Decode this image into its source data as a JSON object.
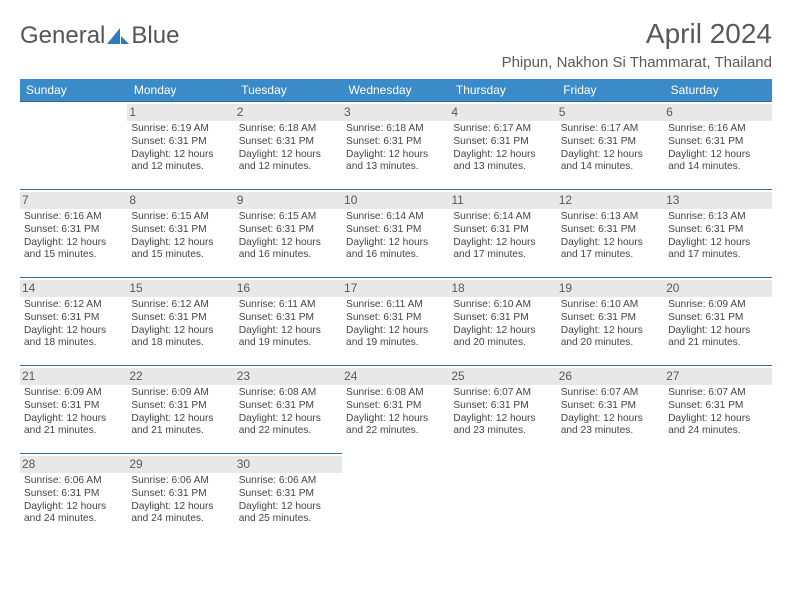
{
  "brand": {
    "word1": "General",
    "word2": "Blue"
  },
  "title": "April 2024",
  "location": "Phipun, Nakhon Si Thammarat, Thailand",
  "colors": {
    "header_bg": "#3b8bc9",
    "header_text": "#ffffff",
    "row_border": "#2b6a9c",
    "daynum_bg": "#e8e8e8",
    "text": "#444444",
    "title_text": "#595959"
  },
  "weekdays": [
    "Sunday",
    "Monday",
    "Tuesday",
    "Wednesday",
    "Thursday",
    "Friday",
    "Saturday"
  ],
  "weeks": [
    [
      null,
      {
        "n": "1",
        "sunrise": "6:19 AM",
        "sunset": "6:31 PM",
        "daylight": "12 hours and 12 minutes."
      },
      {
        "n": "2",
        "sunrise": "6:18 AM",
        "sunset": "6:31 PM",
        "daylight": "12 hours and 12 minutes."
      },
      {
        "n": "3",
        "sunrise": "6:18 AM",
        "sunset": "6:31 PM",
        "daylight": "12 hours and 13 minutes."
      },
      {
        "n": "4",
        "sunrise": "6:17 AM",
        "sunset": "6:31 PM",
        "daylight": "12 hours and 13 minutes."
      },
      {
        "n": "5",
        "sunrise": "6:17 AM",
        "sunset": "6:31 PM",
        "daylight": "12 hours and 14 minutes."
      },
      {
        "n": "6",
        "sunrise": "6:16 AM",
        "sunset": "6:31 PM",
        "daylight": "12 hours and 14 minutes."
      }
    ],
    [
      {
        "n": "7",
        "sunrise": "6:16 AM",
        "sunset": "6:31 PM",
        "daylight": "12 hours and 15 minutes."
      },
      {
        "n": "8",
        "sunrise": "6:15 AM",
        "sunset": "6:31 PM",
        "daylight": "12 hours and 15 minutes."
      },
      {
        "n": "9",
        "sunrise": "6:15 AM",
        "sunset": "6:31 PM",
        "daylight": "12 hours and 16 minutes."
      },
      {
        "n": "10",
        "sunrise": "6:14 AM",
        "sunset": "6:31 PM",
        "daylight": "12 hours and 16 minutes."
      },
      {
        "n": "11",
        "sunrise": "6:14 AM",
        "sunset": "6:31 PM",
        "daylight": "12 hours and 17 minutes."
      },
      {
        "n": "12",
        "sunrise": "6:13 AM",
        "sunset": "6:31 PM",
        "daylight": "12 hours and 17 minutes."
      },
      {
        "n": "13",
        "sunrise": "6:13 AM",
        "sunset": "6:31 PM",
        "daylight": "12 hours and 17 minutes."
      }
    ],
    [
      {
        "n": "14",
        "sunrise": "6:12 AM",
        "sunset": "6:31 PM",
        "daylight": "12 hours and 18 minutes."
      },
      {
        "n": "15",
        "sunrise": "6:12 AM",
        "sunset": "6:31 PM",
        "daylight": "12 hours and 18 minutes."
      },
      {
        "n": "16",
        "sunrise": "6:11 AM",
        "sunset": "6:31 PM",
        "daylight": "12 hours and 19 minutes."
      },
      {
        "n": "17",
        "sunrise": "6:11 AM",
        "sunset": "6:31 PM",
        "daylight": "12 hours and 19 minutes."
      },
      {
        "n": "18",
        "sunrise": "6:10 AM",
        "sunset": "6:31 PM",
        "daylight": "12 hours and 20 minutes."
      },
      {
        "n": "19",
        "sunrise": "6:10 AM",
        "sunset": "6:31 PM",
        "daylight": "12 hours and 20 minutes."
      },
      {
        "n": "20",
        "sunrise": "6:09 AM",
        "sunset": "6:31 PM",
        "daylight": "12 hours and 21 minutes."
      }
    ],
    [
      {
        "n": "21",
        "sunrise": "6:09 AM",
        "sunset": "6:31 PM",
        "daylight": "12 hours and 21 minutes."
      },
      {
        "n": "22",
        "sunrise": "6:09 AM",
        "sunset": "6:31 PM",
        "daylight": "12 hours and 21 minutes."
      },
      {
        "n": "23",
        "sunrise": "6:08 AM",
        "sunset": "6:31 PM",
        "daylight": "12 hours and 22 minutes."
      },
      {
        "n": "24",
        "sunrise": "6:08 AM",
        "sunset": "6:31 PM",
        "daylight": "12 hours and 22 minutes."
      },
      {
        "n": "25",
        "sunrise": "6:07 AM",
        "sunset": "6:31 PM",
        "daylight": "12 hours and 23 minutes."
      },
      {
        "n": "26",
        "sunrise": "6:07 AM",
        "sunset": "6:31 PM",
        "daylight": "12 hours and 23 minutes."
      },
      {
        "n": "27",
        "sunrise": "6:07 AM",
        "sunset": "6:31 PM",
        "daylight": "12 hours and 24 minutes."
      }
    ],
    [
      {
        "n": "28",
        "sunrise": "6:06 AM",
        "sunset": "6:31 PM",
        "daylight": "12 hours and 24 minutes."
      },
      {
        "n": "29",
        "sunrise": "6:06 AM",
        "sunset": "6:31 PM",
        "daylight": "12 hours and 24 minutes."
      },
      {
        "n": "30",
        "sunrise": "6:06 AM",
        "sunset": "6:31 PM",
        "daylight": "12 hours and 25 minutes."
      },
      null,
      null,
      null,
      null
    ]
  ],
  "labels": {
    "sunrise": "Sunrise:",
    "sunset": "Sunset:",
    "daylight": "Daylight:"
  }
}
